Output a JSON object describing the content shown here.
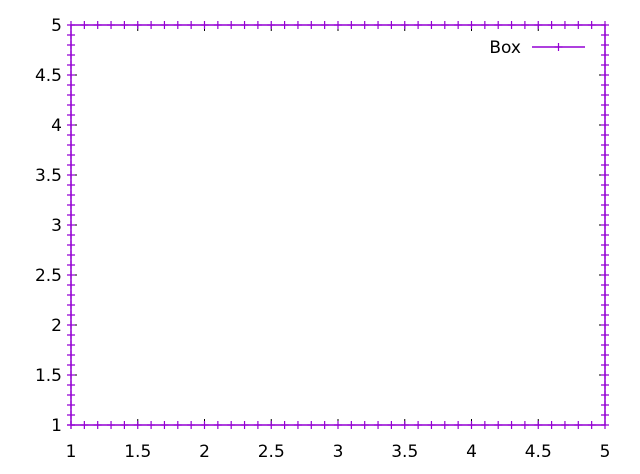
{
  "chart_data": {
    "type": "line",
    "title": "",
    "xlabel": "",
    "ylabel": "",
    "xlim": [
      1,
      5
    ],
    "ylim": [
      1,
      5
    ],
    "x_ticks": [
      1,
      1.5,
      2,
      2.5,
      3,
      3.5,
      4,
      4.5,
      5
    ],
    "x_tick_labels": [
      "1",
      "1.5",
      "2",
      "2.5",
      "3",
      "3.5",
      "4",
      "4.5",
      "5"
    ],
    "y_ticks": [
      1,
      1.5,
      2,
      2.5,
      3,
      3.5,
      4,
      4.5,
      5
    ],
    "y_tick_labels": [
      "1",
      "1.5",
      "2",
      "2.5",
      "3",
      "3.5",
      "4",
      "4.5",
      "5"
    ],
    "grid": false,
    "legend_position": "top-right",
    "series": [
      {
        "name": "Box",
        "color": "#9400d3",
        "marker": "plus",
        "points": [
          [
            1,
            1
          ],
          [
            1.1,
            1
          ],
          [
            1.2,
            1
          ],
          [
            1.3,
            1
          ],
          [
            1.4,
            1
          ],
          [
            1.5,
            1
          ],
          [
            1.6,
            1
          ],
          [
            1.7,
            1
          ],
          [
            1.8,
            1
          ],
          [
            1.9,
            1
          ],
          [
            2,
            1
          ],
          [
            2.1,
            1
          ],
          [
            2.2,
            1
          ],
          [
            2.3,
            1
          ],
          [
            2.4,
            1
          ],
          [
            2.5,
            1
          ],
          [
            2.6,
            1
          ],
          [
            2.7,
            1
          ],
          [
            2.8,
            1
          ],
          [
            2.9,
            1
          ],
          [
            3,
            1
          ],
          [
            3.1,
            1
          ],
          [
            3.2,
            1
          ],
          [
            3.3,
            1
          ],
          [
            3.4,
            1
          ],
          [
            3.5,
            1
          ],
          [
            3.6,
            1
          ],
          [
            3.7,
            1
          ],
          [
            3.8,
            1
          ],
          [
            3.9,
            1
          ],
          [
            4,
            1
          ],
          [
            4.1,
            1
          ],
          [
            4.2,
            1
          ],
          [
            4.3,
            1
          ],
          [
            4.4,
            1
          ],
          [
            4.5,
            1
          ],
          [
            4.6,
            1
          ],
          [
            4.7,
            1
          ],
          [
            4.8,
            1
          ],
          [
            4.9,
            1
          ],
          [
            5,
            1
          ],
          [
            5,
            1.1
          ],
          [
            5,
            1.2
          ],
          [
            5,
            1.3
          ],
          [
            5,
            1.4
          ],
          [
            5,
            1.5
          ],
          [
            5,
            1.6
          ],
          [
            5,
            1.7
          ],
          [
            5,
            1.8
          ],
          [
            5,
            1.9
          ],
          [
            5,
            2
          ],
          [
            5,
            2.1
          ],
          [
            5,
            2.2
          ],
          [
            5,
            2.3
          ],
          [
            5,
            2.4
          ],
          [
            5,
            2.5
          ],
          [
            5,
            2.6
          ],
          [
            5,
            2.7
          ],
          [
            5,
            2.8
          ],
          [
            5,
            2.9
          ],
          [
            5,
            3
          ],
          [
            5,
            3.1
          ],
          [
            5,
            3.2
          ],
          [
            5,
            3.3
          ],
          [
            5,
            3.4
          ],
          [
            5,
            3.5
          ],
          [
            5,
            3.6
          ],
          [
            5,
            3.7
          ],
          [
            5,
            3.8
          ],
          [
            5,
            3.9
          ],
          [
            5,
            4
          ],
          [
            5,
            4.1
          ],
          [
            5,
            4.2
          ],
          [
            5,
            4.3
          ],
          [
            5,
            4.4
          ],
          [
            5,
            4.5
          ],
          [
            5,
            4.6
          ],
          [
            5,
            4.7
          ],
          [
            5,
            4.8
          ],
          [
            5,
            4.9
          ],
          [
            5,
            5
          ],
          [
            4.9,
            5
          ],
          [
            4.8,
            5
          ],
          [
            4.7,
            5
          ],
          [
            4.6,
            5
          ],
          [
            4.5,
            5
          ],
          [
            4.4,
            5
          ],
          [
            4.3,
            5
          ],
          [
            4.2,
            5
          ],
          [
            4.1,
            5
          ],
          [
            4,
            5
          ],
          [
            3.9,
            5
          ],
          [
            3.8,
            5
          ],
          [
            3.7,
            5
          ],
          [
            3.6,
            5
          ],
          [
            3.5,
            5
          ],
          [
            3.4,
            5
          ],
          [
            3.3,
            5
          ],
          [
            3.2,
            5
          ],
          [
            3.1,
            5
          ],
          [
            3,
            5
          ],
          [
            2.9,
            5
          ],
          [
            2.8,
            5
          ],
          [
            2.7,
            5
          ],
          [
            2.6,
            5
          ],
          [
            2.5,
            5
          ],
          [
            2.4,
            5
          ],
          [
            2.3,
            5
          ],
          [
            2.2,
            5
          ],
          [
            2.1,
            5
          ],
          [
            2,
            5
          ],
          [
            1.9,
            5
          ],
          [
            1.8,
            5
          ],
          [
            1.7,
            5
          ],
          [
            1.6,
            5
          ],
          [
            1.5,
            5
          ],
          [
            1.4,
            5
          ],
          [
            1.3,
            5
          ],
          [
            1.2,
            5
          ],
          [
            1.1,
            5
          ],
          [
            1,
            5
          ],
          [
            1,
            4.9
          ],
          [
            1,
            4.8
          ],
          [
            1,
            4.7
          ],
          [
            1,
            4.6
          ],
          [
            1,
            4.5
          ],
          [
            1,
            4.4
          ],
          [
            1,
            4.3
          ],
          [
            1,
            4.2
          ],
          [
            1,
            4.1
          ],
          [
            1,
            4
          ],
          [
            1,
            3.9
          ],
          [
            1,
            3.8
          ],
          [
            1,
            3.7
          ],
          [
            1,
            3.6
          ],
          [
            1,
            3.5
          ],
          [
            1,
            3.4
          ],
          [
            1,
            3.3
          ],
          [
            1,
            3.2
          ],
          [
            1,
            3.1
          ],
          [
            1,
            3
          ],
          [
            1,
            2.9
          ],
          [
            1,
            2.8
          ],
          [
            1,
            2.7
          ],
          [
            1,
            2.6
          ],
          [
            1,
            2.5
          ],
          [
            1,
            2.4
          ],
          [
            1,
            2.3
          ],
          [
            1,
            2.2
          ],
          [
            1,
            2.1
          ],
          [
            1,
            2
          ],
          [
            1,
            1.9
          ],
          [
            1,
            1.8
          ],
          [
            1,
            1.7
          ],
          [
            1,
            1.6
          ],
          [
            1,
            1.5
          ],
          [
            1,
            1.4
          ],
          [
            1,
            1.3
          ],
          [
            1,
            1.2
          ],
          [
            1,
            1.1
          ],
          [
            1,
            1
          ]
        ]
      }
    ]
  }
}
